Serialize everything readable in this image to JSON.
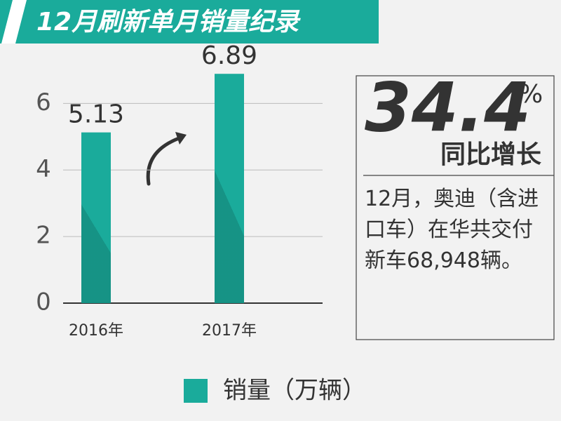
{
  "chart_data": {
    "type": "bar",
    "title": "12月刷新单月销量纪录",
    "categories": [
      "2016年",
      "2017年"
    ],
    "series": [
      {
        "name": "销量（万辆）",
        "color": "#1aab9b",
        "values": [
          5.13,
          6.89
        ]
      }
    ],
    "ylim": [
      0,
      7
    ],
    "yticks": [
      0,
      2,
      4,
      6
    ],
    "grid": true,
    "callout": {
      "value": "34.4",
      "unit": "%",
      "label": "同比增长",
      "text": "12月，奥迪（含进口车）在华共交付新车68,948辆。"
    }
  }
}
